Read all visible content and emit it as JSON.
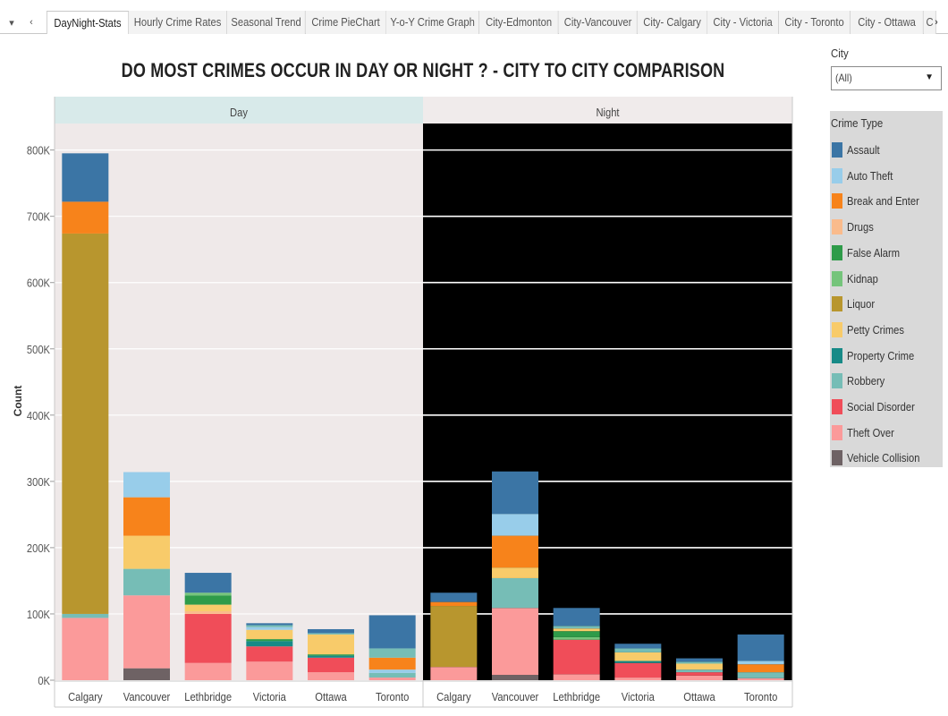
{
  "tabs": {
    "items": [
      "DayNight-Stats",
      "Hourly Crime Rates",
      "Seasonal Trend",
      "Crime PieChart",
      "Y-o-Y Crime Graph",
      "City-Edmonton",
      "City-Vancouver",
      "City- Calgary",
      "City - Victoria",
      "City - Toronto",
      "City - Ottawa",
      "C"
    ],
    "active": "DayNight-Stats"
  },
  "filter": {
    "label": "City",
    "value": "(All)"
  },
  "legend": {
    "title": "Crime Type",
    "items": [
      {
        "label": "Assault",
        "color": "#3b75a5"
      },
      {
        "label": "Auto Theft",
        "color": "#98cdea"
      },
      {
        "label": "Break and Enter",
        "color": "#f7831b"
      },
      {
        "label": "Drugs",
        "color": "#fabb8c"
      },
      {
        "label": "False Alarm",
        "color": "#2e9b49"
      },
      {
        "label": "Kidnap",
        "color": "#75c47b"
      },
      {
        "label": "Liquor",
        "color": "#b8962e"
      },
      {
        "label": "Petty Crimes",
        "color": "#f8cb6a"
      },
      {
        "label": "Property Crime",
        "color": "#178a87"
      },
      {
        "label": "Robbery",
        "color": "#76bdb6"
      },
      {
        "label": "Social Disorder",
        "color": "#f04d59"
      },
      {
        "label": "Theft Over",
        "color": "#fb9a9a"
      },
      {
        "label": "Vehicle Collision",
        "color": "#6e6264"
      }
    ]
  },
  "chart_data": {
    "type": "bar",
    "stacked": true,
    "title": "DO MOST CRIMES OCCUR IN DAY OR NIGHT ?  - CITY TO CITY COMPARISON",
    "ylabel": "Count",
    "ylim": [
      0,
      840000
    ],
    "yticks": [
      0,
      100000,
      200000,
      300000,
      400000,
      500000,
      600000,
      700000,
      800000
    ],
    "ytick_labels": [
      "0K",
      "100K",
      "200K",
      "300K",
      "400K",
      "500K",
      "600K",
      "700K",
      "800K"
    ],
    "panels": [
      "Day",
      "Night"
    ],
    "panel_colors": {
      "Day": "#efe9e9",
      "Night": "#000000",
      "day_header": "#d8eaea",
      "night_header": "#f0ebeb"
    },
    "categories": [
      "Calgary",
      "Vancouver",
      "Lethbridge",
      "Victoria",
      "Ottawa",
      "Toronto"
    ],
    "bars": {
      "Day": {
        "Calgary": [
          [
            "Theft Over",
            94000
          ],
          [
            "Robbery",
            6000
          ],
          [
            "Liquor",
            574000
          ],
          [
            "Break and Enter",
            48000
          ],
          [
            "Assault",
            73000
          ]
        ],
        "Vancouver": [
          [
            "Vehicle Collision",
            18000
          ],
          [
            "Theft Over",
            110000
          ],
          [
            "Robbery",
            40000
          ],
          [
            "Petty Crimes",
            50000
          ],
          [
            "Break and Enter",
            58000
          ],
          [
            "Auto Theft",
            38000
          ]
        ],
        "Lethbridge": [
          [
            "Theft Over",
            26000
          ],
          [
            "Social Disorder",
            74000
          ],
          [
            "Drugs",
            4000
          ],
          [
            "Petty Crimes",
            10000
          ],
          [
            "False Alarm",
            14000
          ],
          [
            "Kidnap",
            4000
          ],
          [
            "Assault",
            30000
          ]
        ],
        "Victoria": [
          [
            "Theft Over",
            28000
          ],
          [
            "Social Disorder",
            23000
          ],
          [
            "Property Crime",
            8000
          ],
          [
            "False Alarm",
            3000
          ],
          [
            "Petty Crimes",
            14000
          ],
          [
            "Auto Theft",
            4000
          ],
          [
            "Robbery",
            3000
          ],
          [
            "Assault",
            3000
          ]
        ],
        "Ottawa": [
          [
            "Theft Over",
            12000
          ],
          [
            "Social Disorder",
            22000
          ],
          [
            "Property Crime",
            3000
          ],
          [
            "False Alarm",
            2000
          ],
          [
            "Petty Crimes",
            30000
          ],
          [
            "Robbery",
            2000
          ],
          [
            "Assault",
            6000
          ]
        ],
        "Toronto": [
          [
            "Theft Over",
            4000
          ],
          [
            "Robbery",
            7000
          ],
          [
            "Auto Theft",
            5000
          ],
          [
            "Break and Enter",
            18000
          ],
          [
            "Robbery",
            14000
          ],
          [
            "Assault",
            50000
          ]
        ]
      },
      "Night": {
        "Calgary": [
          [
            "Theft Over",
            20000
          ],
          [
            "Liquor",
            92000
          ],
          [
            "Break and Enter",
            6000
          ],
          [
            "Assault",
            14000
          ]
        ],
        "Vancouver": [
          [
            "Vehicle Collision",
            8000
          ],
          [
            "Theft Over",
            101000
          ],
          [
            "Robbery",
            45000
          ],
          [
            "Petty Crimes",
            16000
          ],
          [
            "Break and Enter",
            48000
          ],
          [
            "Auto Theft",
            33000
          ],
          [
            "Assault",
            64000
          ]
        ],
        "Lethbridge": [
          [
            "Theft Over",
            9000
          ],
          [
            "Social Disorder",
            52000
          ],
          [
            "Kidnap",
            4000
          ],
          [
            "False Alarm",
            9000
          ],
          [
            "Petty Crimes",
            4000
          ],
          [
            "Robbery",
            4000
          ],
          [
            "Assault",
            27000
          ]
        ],
        "Victoria": [
          [
            "Theft Over",
            4000
          ],
          [
            "Social Disorder",
            22000
          ],
          [
            "Property Crime",
            3000
          ],
          [
            "Petty Crimes",
            13000
          ],
          [
            "Robbery",
            6000
          ],
          [
            "Assault",
            7000
          ]
        ],
        "Ottawa": [
          [
            "Theft Over",
            7000
          ],
          [
            "Social Disorder",
            5000
          ],
          [
            "Robbery",
            4000
          ],
          [
            "Petty Crimes",
            9000
          ],
          [
            "Robbery",
            3000
          ],
          [
            "Assault",
            5000
          ]
        ],
        "Toronto": [
          [
            "Theft Over",
            3000
          ],
          [
            "Robbery",
            9000
          ],
          [
            "Break and Enter",
            12000
          ],
          [
            "Auto Theft",
            5000
          ],
          [
            "Assault",
            40000
          ]
        ]
      }
    }
  }
}
